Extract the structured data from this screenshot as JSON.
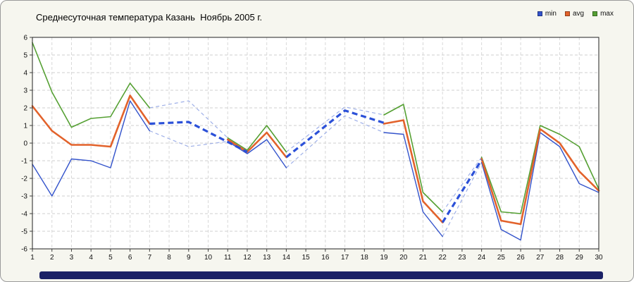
{
  "header": {
    "title": "Среднесуточная температура Казань  Ноябрь 2005 г."
  },
  "legend": {
    "items": [
      {
        "label": "min",
        "color": "#3353cb"
      },
      {
        "label": "avg",
        "color": "#e2622b"
      },
      {
        "label": "max",
        "color": "#55a033"
      }
    ]
  },
  "chart_data": {
    "type": "line",
    "title": "Среднесуточная температура Казань  Ноябрь 2005 г.",
    "xlabel": "",
    "ylabel": "",
    "x": [
      1,
      2,
      3,
      4,
      5,
      6,
      7,
      8,
      9,
      10,
      11,
      12,
      13,
      14,
      15,
      16,
      17,
      18,
      19,
      20,
      21,
      22,
      23,
      24,
      25,
      26,
      27,
      28,
      29,
      30
    ],
    "ylim": [
      -6,
      6
    ],
    "grid": true,
    "legend_position": "top-right",
    "series": [
      {
        "name": "max",
        "color": "#55a033",
        "width": 1.6,
        "values": [
          5.7,
          2.9,
          0.9,
          1.4,
          1.5,
          3.4,
          2.0,
          null,
          null,
          null,
          0.3,
          -0.4,
          1.0,
          -0.5,
          null,
          null,
          2.0,
          null,
          1.6,
          2.2,
          -2.8,
          -3.9,
          null,
          -0.8,
          -3.9,
          -4.0,
          1.0,
          0.5,
          -0.2,
          -2.6
        ]
      },
      {
        "name": "min",
        "color": "#3353cb",
        "width": 1.4,
        "values": [
          -1.2,
          -3.0,
          -0.9,
          -1.0,
          -1.4,
          2.4,
          0.7,
          null,
          null,
          null,
          0.1,
          -0.6,
          0.2,
          -1.4,
          null,
          null,
          1.6,
          null,
          0.6,
          0.5,
          -3.9,
          -5.3,
          null,
          -1.1,
          -4.9,
          -5.5,
          0.6,
          -0.2,
          -2.3,
          -2.8
        ]
      },
      {
        "name": "avg",
        "color": "#e2622b",
        "width": 2.6,
        "values": [
          2.1,
          0.7,
          -0.1,
          -0.1,
          -0.2,
          2.7,
          1.1,
          null,
          null,
          null,
          0.2,
          -0.5,
          0.6,
          -0.8,
          null,
          null,
          1.8,
          null,
          1.1,
          1.3,
          -3.3,
          -4.5,
          null,
          -0.9,
          -4.4,
          -4.6,
          0.8,
          0.0,
          -1.6,
          -2.7
        ]
      }
    ],
    "interpolated": [
      {
        "name": "max-interpolated",
        "layer": "under",
        "color": "#9fb0e8",
        "width": 1.2,
        "dash": "5 4",
        "segments": [
          [
            [
              7,
              2.0
            ],
            [
              9,
              2.4
            ],
            [
              11,
              0.3
            ]
          ],
          [
            [
              14,
              -0.5
            ],
            [
              17,
              2.05
            ],
            [
              19,
              1.6
            ]
          ],
          [
            [
              22,
              -3.9
            ],
            [
              24,
              -0.8
            ]
          ]
        ]
      },
      {
        "name": "min-interpolated",
        "layer": "under",
        "color": "#9fb0e8",
        "width": 1.2,
        "dash": "5 4",
        "segments": [
          [
            [
              7,
              0.7
            ],
            [
              9,
              -0.2
            ],
            [
              11,
              0.1
            ]
          ],
          [
            [
              14,
              -1.4
            ],
            [
              17,
              1.55
            ],
            [
              19,
              0.6
            ]
          ],
          [
            [
              22,
              -5.3
            ],
            [
              24,
              -1.1
            ]
          ]
        ]
      },
      {
        "name": "avg-interpolated",
        "layer": "over",
        "color": "#2b50d8",
        "width": 3.2,
        "dash": "8 5",
        "segments": [
          [
            [
              7,
              1.1
            ],
            [
              9,
              1.2
            ],
            [
              12,
              -0.5
            ]
          ],
          [
            [
              14,
              -0.8
            ],
            [
              17,
              1.85
            ],
            [
              19,
              1.15
            ]
          ],
          [
            [
              22,
              -4.5
            ],
            [
              24,
              -0.95
            ]
          ]
        ]
      }
    ],
    "y_ticks": [
      -6,
      -5,
      -4,
      -3,
      -2,
      -1,
      0,
      1,
      2,
      3,
      4,
      5,
      6
    ]
  }
}
